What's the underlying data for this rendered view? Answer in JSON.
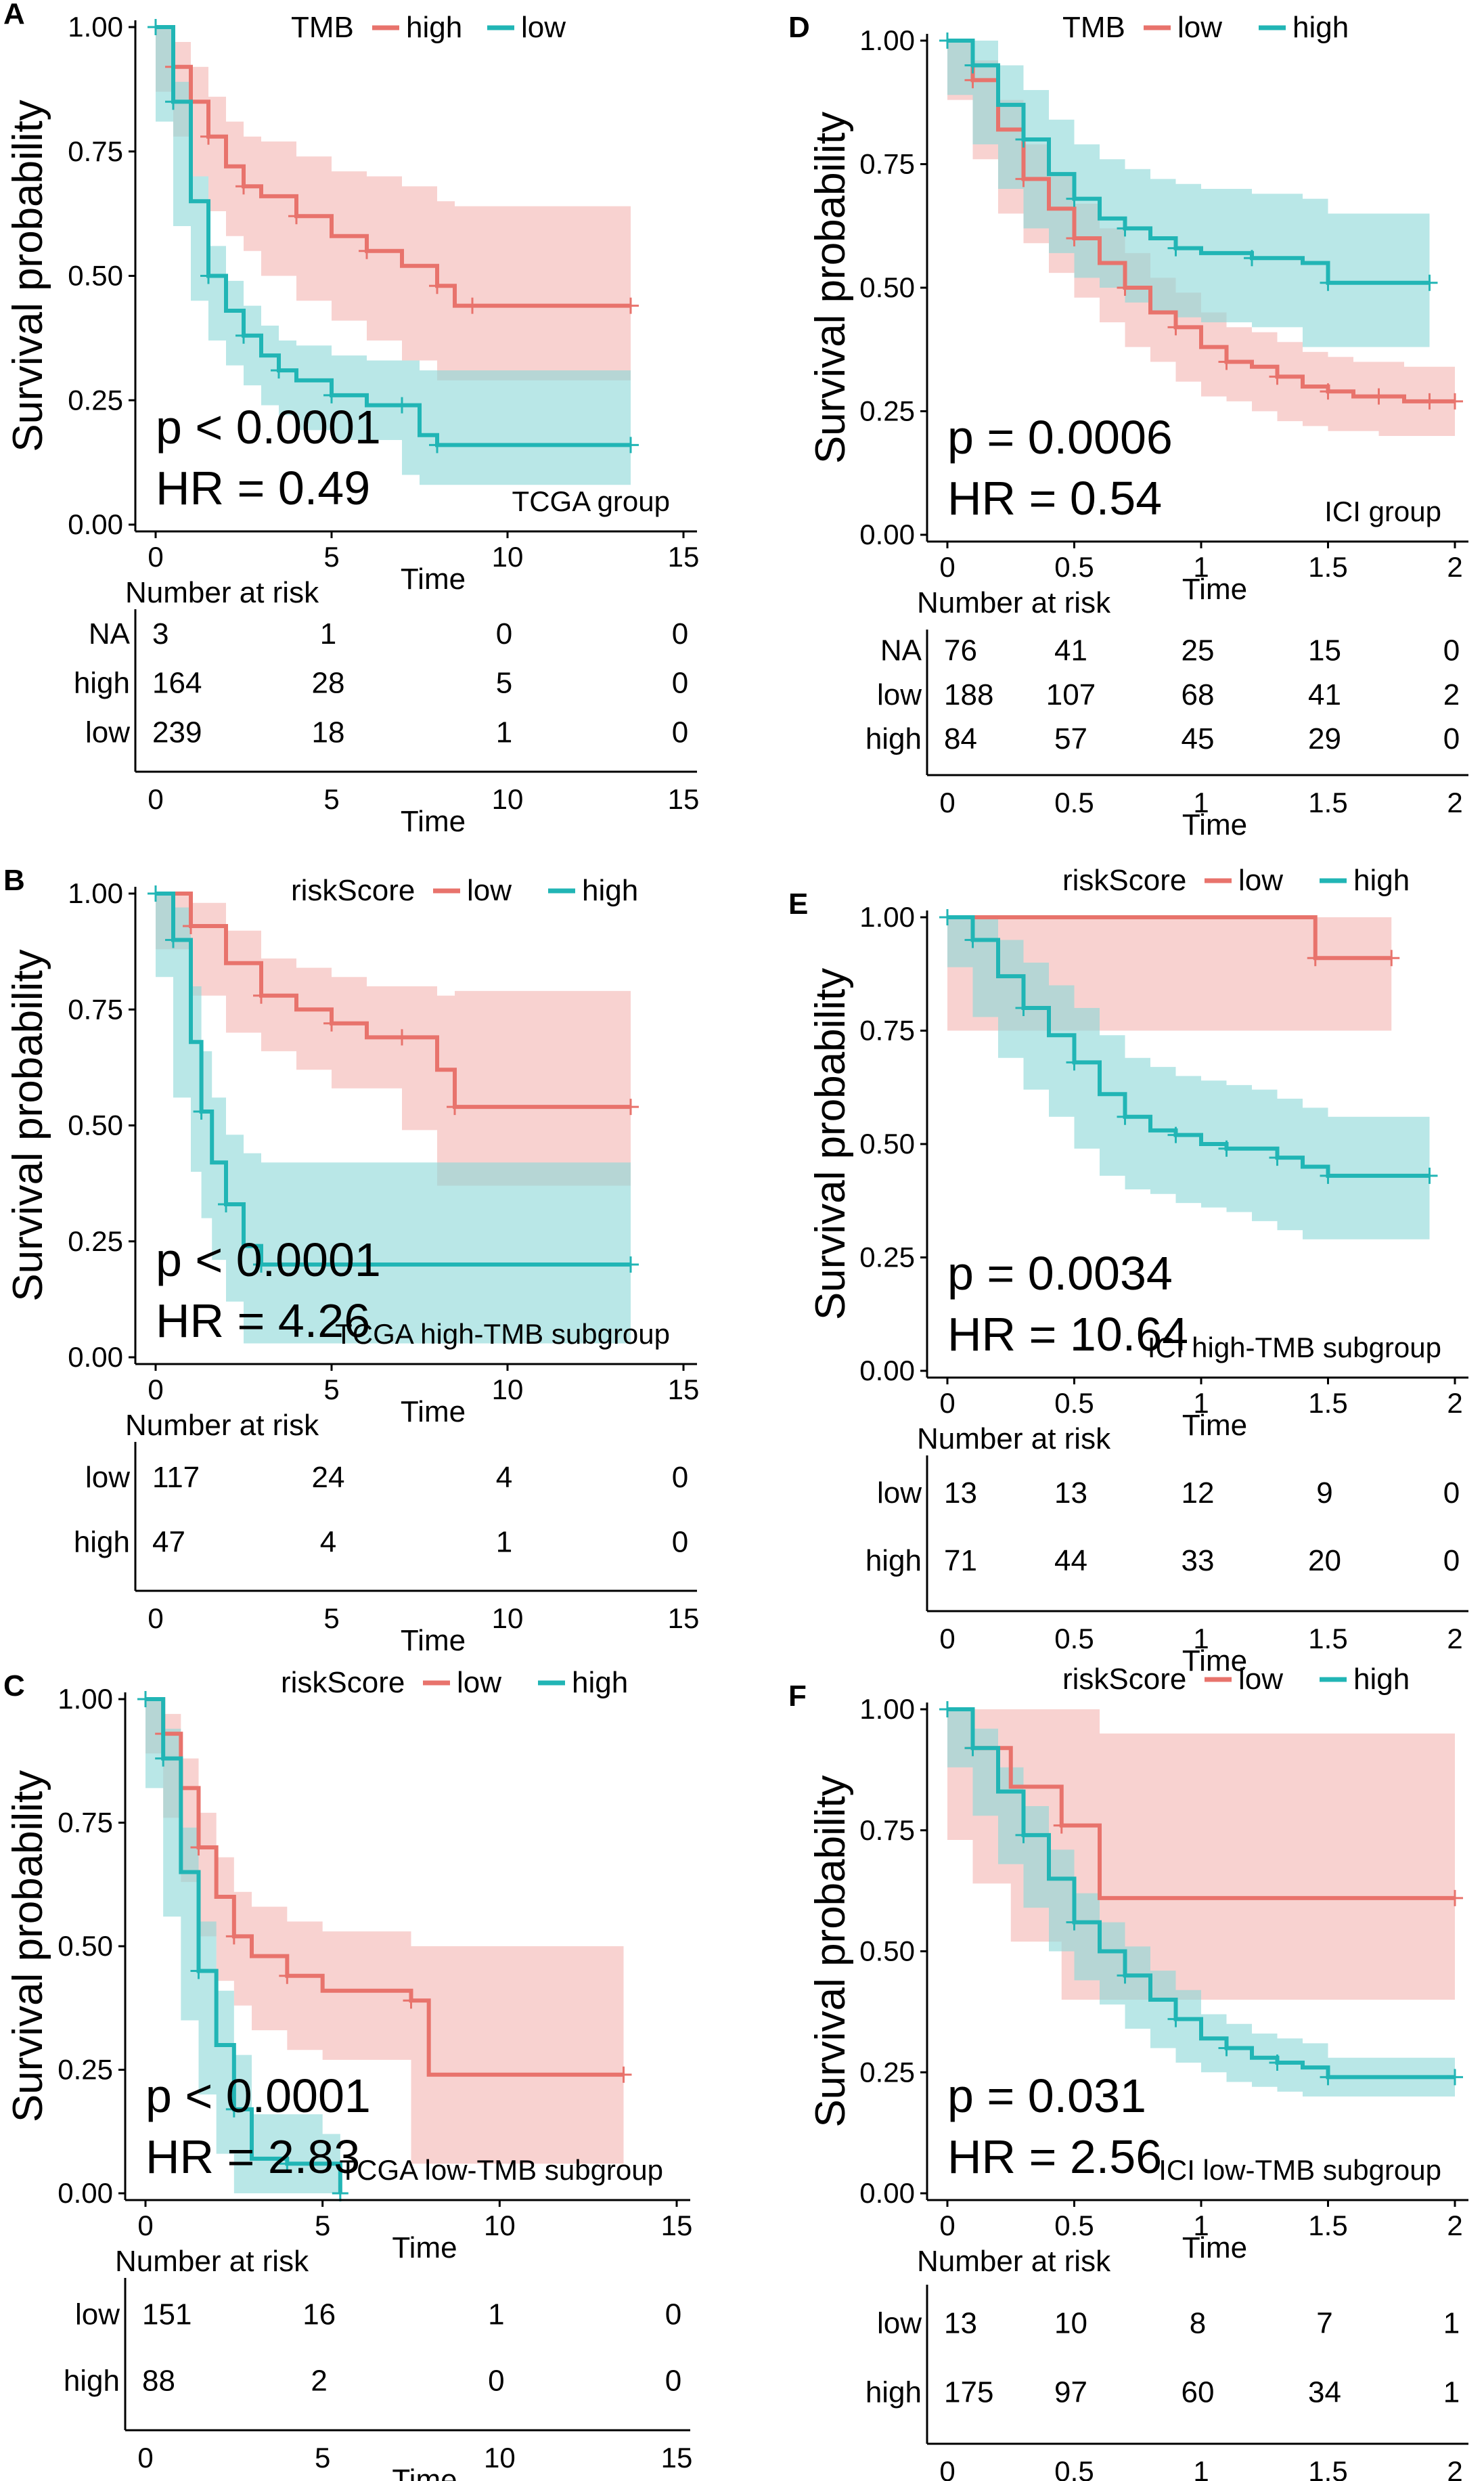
{
  "figure": {
    "ylabel": "Survival probability",
    "xlabel": "Time",
    "risk_title": "Number at risk"
  },
  "chart_data": [
    {
      "panel": "A",
      "type": "line",
      "title": "TCGA group",
      "legend_title": "TMB",
      "xlim": [
        0,
        15
      ],
      "ylim": [
        0,
        1
      ],
      "xticks": [
        "0",
        "5",
        "10",
        "15"
      ],
      "xtick_values": [
        0,
        5,
        10,
        15
      ],
      "yticks": [
        "0.00",
        "0.25",
        "0.50",
        "0.75",
        "1.00"
      ],
      "p_text": "p < 0.0001",
      "hr_text": "HR = 0.49",
      "series": [
        {
          "name": "high",
          "color": "#E8736C",
          "x": [
            0,
            0.5,
            1,
            1.5,
            2,
            2.5,
            3,
            4,
            5,
            6,
            7,
            8,
            8.5,
            9,
            12,
            13.5
          ],
          "y": [
            1,
            0.92,
            0.85,
            0.78,
            0.72,
            0.68,
            0.66,
            0.62,
            0.58,
            0.55,
            0.52,
            0.48,
            0.44,
            0.44,
            0.44,
            0.44
          ],
          "lower": [
            1,
            0.87,
            0.78,
            0.7,
            0.63,
            0.58,
            0.55,
            0.5,
            0.45,
            0.41,
            0.37,
            0.33,
            0.29,
            0.29,
            0.29,
            0.29
          ],
          "upper": [
            1,
            0.97,
            0.92,
            0.86,
            0.81,
            0.78,
            0.77,
            0.74,
            0.71,
            0.7,
            0.68,
            0.65,
            0.64,
            0.64,
            0.64,
            0.64
          ]
        },
        {
          "name": "low",
          "color": "#21B5B5",
          "x": [
            0,
            0.5,
            1,
            1.5,
            2,
            2.5,
            3,
            3.5,
            4,
            5,
            6,
            7,
            7.5,
            8,
            13.5
          ],
          "y": [
            1,
            0.85,
            0.65,
            0.5,
            0.43,
            0.38,
            0.34,
            0.31,
            0.29,
            0.26,
            0.24,
            0.24,
            0.18,
            0.16,
            0.16
          ],
          "lower": [
            1,
            0.81,
            0.6,
            0.45,
            0.37,
            0.32,
            0.28,
            0.24,
            0.22,
            0.19,
            0.17,
            0.17,
            0.1,
            0.08,
            0.08
          ],
          "upper": [
            1,
            0.89,
            0.7,
            0.56,
            0.49,
            0.44,
            0.4,
            0.37,
            0.36,
            0.34,
            0.33,
            0.33,
            0.31,
            0.31,
            0.31
          ]
        }
      ],
      "risk_table": {
        "rows": [
          {
            "label": "NA",
            "values": [
              "3",
              "1",
              "0",
              "0"
            ]
          },
          {
            "label": "high",
            "values": [
              "164",
              "28",
              "5",
              "0"
            ]
          },
          {
            "label": "low",
            "values": [
              "239",
              "18",
              "1",
              "0"
            ]
          }
        ]
      }
    },
    {
      "panel": "B",
      "type": "line",
      "title": "TCGA high-TMB subgroup",
      "legend_title": "riskScore",
      "xlim": [
        0,
        15
      ],
      "ylim": [
        0,
        1
      ],
      "xticks": [
        "0",
        "5",
        "10",
        "15"
      ],
      "xtick_values": [
        0,
        5,
        10,
        15
      ],
      "yticks": [
        "0.00",
        "0.25",
        "0.50",
        "0.75",
        "1.00"
      ],
      "p_text": "p < 0.0001",
      "hr_text": "HR = 4.26",
      "series": [
        {
          "name": "low",
          "color": "#E8736C",
          "x": [
            0,
            1,
            2,
            3,
            4,
            5,
            6,
            7,
            8,
            8.5,
            9,
            13.5
          ],
          "y": [
            1,
            0.93,
            0.85,
            0.78,
            0.75,
            0.72,
            0.69,
            0.69,
            0.62,
            0.54,
            0.54,
            0.54
          ],
          "lower": [
            1,
            0.88,
            0.78,
            0.7,
            0.66,
            0.62,
            0.58,
            0.58,
            0.49,
            0.37,
            0.37,
            0.37
          ],
          "upper": [
            1,
            0.98,
            0.92,
            0.86,
            0.84,
            0.82,
            0.8,
            0.8,
            0.78,
            0.79,
            0.79,
            0.79
          ]
        },
        {
          "name": "high",
          "color": "#21B5B5",
          "x": [
            0,
            0.5,
            1,
            1.3,
            1.6,
            2,
            2.5,
            3,
            5,
            13.5
          ],
          "y": [
            1,
            0.9,
            0.68,
            0.53,
            0.42,
            0.33,
            0.24,
            0.2,
            0.2,
            0.2
          ],
          "lower": [
            1,
            0.82,
            0.56,
            0.4,
            0.3,
            0.21,
            0.12,
            0.03,
            0.03,
            0.03
          ],
          "upper": [
            1,
            0.97,
            0.8,
            0.66,
            0.56,
            0.48,
            0.44,
            0.42,
            0.42,
            0.42
          ]
        }
      ],
      "risk_table": {
        "rows": [
          {
            "label": "low",
            "values": [
              "117",
              "24",
              "4",
              "0"
            ]
          },
          {
            "label": "high",
            "values": [
              "47",
              "4",
              "1",
              "0"
            ]
          }
        ]
      }
    },
    {
      "panel": "C",
      "type": "line",
      "title": "TCGA low-TMB subgroup",
      "legend_title": "riskScore",
      "xlim": [
        0,
        15
      ],
      "ylim": [
        0,
        1
      ],
      "xticks": [
        "0",
        "5",
        "10",
        "15"
      ],
      "xtick_values": [
        0,
        5,
        10,
        15
      ],
      "yticks": [
        "0.00",
        "0.25",
        "0.50",
        "0.75",
        "1.00"
      ],
      "p_text": "p < 0.0001",
      "hr_text": "HR = 2.83",
      "series": [
        {
          "name": "low",
          "color": "#E8736C",
          "x": [
            0,
            0.5,
            1,
            1.5,
            2,
            2.5,
            3,
            4,
            5,
            7.5,
            8,
            13.5
          ],
          "y": [
            1,
            0.93,
            0.82,
            0.7,
            0.6,
            0.52,
            0.48,
            0.44,
            0.41,
            0.39,
            0.24,
            0.24
          ],
          "lower": [
            1,
            0.89,
            0.76,
            0.63,
            0.52,
            0.43,
            0.38,
            0.33,
            0.29,
            0.27,
            0.06,
            0.06
          ],
          "upper": [
            1,
            0.97,
            0.88,
            0.77,
            0.68,
            0.61,
            0.58,
            0.55,
            0.53,
            0.5,
            0.5,
            0.5
          ]
        },
        {
          "name": "high",
          "color": "#21B5B5",
          "x": [
            0,
            0.5,
            1,
            1.5,
            2,
            2.5,
            3,
            4,
            5,
            5.5
          ],
          "y": [
            1,
            0.88,
            0.65,
            0.45,
            0.3,
            0.17,
            0.07,
            0.06,
            0.06,
            0
          ],
          "lower": [
            1,
            0.82,
            0.56,
            0.35,
            0.2,
            0.08,
            0,
            0,
            0,
            0
          ],
          "upper": [
            1,
            0.94,
            0.74,
            0.55,
            0.41,
            0.28,
            0.16,
            0.16,
            0.12,
            0.12
          ]
        }
      ],
      "risk_table": {
        "rows": [
          {
            "label": "low",
            "values": [
              "151",
              "16",
              "1",
              "0"
            ]
          },
          {
            "label": "high",
            "values": [
              "88",
              "2",
              "0",
              "0"
            ]
          }
        ]
      }
    },
    {
      "panel": "D",
      "type": "line",
      "title": "ICI group",
      "legend_title": "TMB",
      "xlim": [
        0,
        2
      ],
      "ylim": [
        0,
        1
      ],
      "xticks": [
        "0",
        "0.5",
        "1",
        "1.5",
        "2"
      ],
      "xtick_values": [
        0,
        0.5,
        1,
        1.5,
        2
      ],
      "yticks": [
        "0.00",
        "0.25",
        "0.50",
        "0.75",
        "1.00"
      ],
      "p_text": "p = 0.0006",
      "hr_text": "HR = 0.54",
      "series": [
        {
          "name": "low",
          "color": "#E8736C",
          "x": [
            0,
            0.1,
            0.2,
            0.3,
            0.4,
            0.5,
            0.6,
            0.7,
            0.8,
            0.9,
            1.0,
            1.1,
            1.2,
            1.3,
            1.4,
            1.5,
            1.6,
            1.7,
            1.8,
            1.9,
            2.0
          ],
          "y": [
            1,
            0.92,
            0.82,
            0.72,
            0.66,
            0.6,
            0.55,
            0.5,
            0.45,
            0.42,
            0.38,
            0.35,
            0.34,
            0.32,
            0.3,
            0.29,
            0.28,
            0.28,
            0.27,
            0.27,
            0.27
          ],
          "lower": [
            1,
            0.88,
            0.76,
            0.65,
            0.59,
            0.53,
            0.48,
            0.43,
            0.38,
            0.35,
            0.31,
            0.28,
            0.27,
            0.25,
            0.23,
            0.22,
            0.21,
            0.21,
            0.2,
            0.2,
            0.2
          ],
          "upper": [
            1,
            0.96,
            0.88,
            0.79,
            0.73,
            0.67,
            0.62,
            0.57,
            0.52,
            0.49,
            0.45,
            0.42,
            0.41,
            0.39,
            0.37,
            0.36,
            0.35,
            0.35,
            0.34,
            0.34,
            0.34
          ]
        },
        {
          "name": "high",
          "color": "#21B5B5",
          "x": [
            0,
            0.1,
            0.2,
            0.3,
            0.4,
            0.5,
            0.6,
            0.7,
            0.8,
            0.9,
            1.0,
            1.2,
            1.4,
            1.5,
            1.9
          ],
          "y": [
            1,
            0.95,
            0.87,
            0.8,
            0.73,
            0.68,
            0.64,
            0.62,
            0.6,
            0.58,
            0.57,
            0.56,
            0.55,
            0.51,
            0.51
          ],
          "lower": [
            1,
            0.89,
            0.79,
            0.7,
            0.62,
            0.57,
            0.52,
            0.5,
            0.47,
            0.45,
            0.44,
            0.43,
            0.42,
            0.38,
            0.38
          ],
          "upper": [
            1,
            1,
            0.95,
            0.9,
            0.84,
            0.79,
            0.76,
            0.74,
            0.72,
            0.71,
            0.7,
            0.69,
            0.68,
            0.65,
            0.65
          ]
        }
      ],
      "risk_table": {
        "rows": [
          {
            "label": "NA",
            "values": [
              "76",
              "41",
              "25",
              "15",
              "0"
            ]
          },
          {
            "label": "low",
            "values": [
              "188",
              "107",
              "68",
              "41",
              "2"
            ]
          },
          {
            "label": "high",
            "values": [
              "84",
              "57",
              "45",
              "29",
              "0"
            ]
          }
        ]
      }
    },
    {
      "panel": "E",
      "type": "line",
      "title": "ICI high-TMB subgroup",
      "legend_title": "riskScore",
      "xlim": [
        0,
        2
      ],
      "ylim": [
        0,
        1
      ],
      "xticks": [
        "0",
        "0.5",
        "1",
        "1.5",
        "2"
      ],
      "xtick_values": [
        0,
        0.5,
        1,
        1.5,
        2
      ],
      "yticks": [
        "0.00",
        "0.25",
        "0.50",
        "0.75",
        "1.00"
      ],
      "p_text": "p = 0.0034",
      "hr_text": "HR = 10.64",
      "series": [
        {
          "name": "low",
          "color": "#E8736C",
          "x": [
            0,
            1.45,
            1.75
          ],
          "y": [
            1,
            0.91,
            0.91
          ],
          "lower": [
            1,
            0.75,
            0.75
          ],
          "upper": [
            1,
            1,
            1
          ]
        },
        {
          "name": "high",
          "color": "#21B5B5",
          "x": [
            0,
            0.1,
            0.2,
            0.3,
            0.4,
            0.5,
            0.6,
            0.7,
            0.8,
            0.9,
            1.0,
            1.1,
            1.2,
            1.3,
            1.4,
            1.5,
            1.9
          ],
          "y": [
            1,
            0.95,
            0.87,
            0.8,
            0.74,
            0.68,
            0.61,
            0.56,
            0.53,
            0.52,
            0.5,
            0.49,
            0.49,
            0.47,
            0.45,
            0.43,
            0.43
          ],
          "lower": [
            1,
            0.89,
            0.78,
            0.69,
            0.62,
            0.56,
            0.49,
            0.43,
            0.4,
            0.39,
            0.37,
            0.36,
            0.35,
            0.33,
            0.31,
            0.29,
            0.29
          ],
          "upper": [
            1,
            1,
            0.95,
            0.9,
            0.85,
            0.8,
            0.74,
            0.69,
            0.67,
            0.65,
            0.64,
            0.63,
            0.62,
            0.6,
            0.58,
            0.56,
            0.56
          ]
        }
      ],
      "risk_table": {
        "rows": [
          {
            "label": "low",
            "values": [
              "13",
              "13",
              "12",
              "9",
              "0"
            ]
          },
          {
            "label": "high",
            "values": [
              "71",
              "44",
              "33",
              "20",
              "0"
            ]
          }
        ]
      }
    },
    {
      "panel": "F",
      "type": "line",
      "title": "ICI low-TMB subgroup",
      "legend_title": "riskScore",
      "xlim": [
        0,
        2
      ],
      "ylim": [
        0,
        1
      ],
      "xticks": [
        "0",
        "0.5",
        "1",
        "1.5",
        "2"
      ],
      "xtick_values": [
        0,
        0.5,
        1,
        1.5,
        2
      ],
      "yticks": [
        "0.00",
        "0.25",
        "0.50",
        "0.75",
        "1.00"
      ],
      "p_text": "p = 0.031",
      "hr_text": "HR = 2.56",
      "series": [
        {
          "name": "low",
          "color": "#E8736C",
          "x": [
            0,
            0.1,
            0.25,
            0.45,
            0.6,
            2.0
          ],
          "y": [
            1,
            0.92,
            0.84,
            0.76,
            0.61,
            0.61
          ],
          "lower": [
            1,
            0.73,
            0.64,
            0.52,
            0.4,
            0.4
          ],
          "upper": [
            1,
            1,
            1,
            1,
            0.95,
            0.95
          ]
        },
        {
          "name": "high",
          "color": "#21B5B5",
          "x": [
            0,
            0.1,
            0.2,
            0.3,
            0.4,
            0.5,
            0.6,
            0.7,
            0.8,
            0.9,
            1.0,
            1.1,
            1.2,
            1.3,
            1.4,
            1.5,
            2.0
          ],
          "y": [
            1,
            0.92,
            0.83,
            0.74,
            0.65,
            0.56,
            0.5,
            0.45,
            0.4,
            0.36,
            0.32,
            0.3,
            0.28,
            0.27,
            0.26,
            0.24,
            0.24
          ],
          "lower": [
            1,
            0.88,
            0.78,
            0.68,
            0.59,
            0.5,
            0.44,
            0.39,
            0.34,
            0.3,
            0.27,
            0.25,
            0.23,
            0.22,
            0.21,
            0.2,
            0.2
          ],
          "upper": [
            1,
            0.96,
            0.88,
            0.8,
            0.71,
            0.62,
            0.56,
            0.51,
            0.46,
            0.42,
            0.37,
            0.35,
            0.33,
            0.32,
            0.31,
            0.28,
            0.28
          ]
        }
      ],
      "risk_table": {
        "rows": [
          {
            "label": "low",
            "values": [
              "13",
              "10",
              "8",
              "7",
              "1"
            ]
          },
          {
            "label": "high",
            "values": [
              "175",
              "97",
              "60",
              "34",
              "1"
            ]
          }
        ]
      }
    }
  ]
}
